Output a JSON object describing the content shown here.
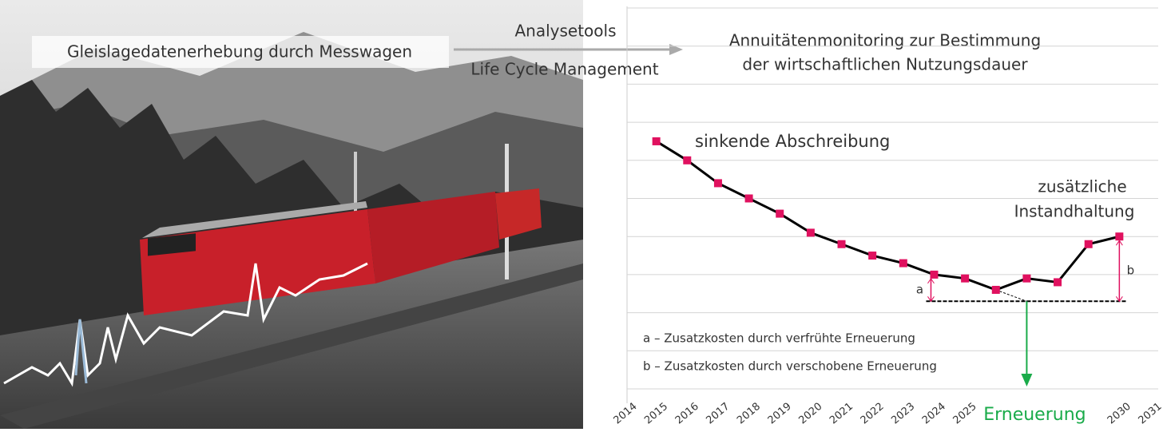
{
  "header": {
    "left_label": "Gleislagedatenerhebung durch Messwagen",
    "arrow_top": "Analysetools",
    "arrow_bottom": "Life Cycle Management"
  },
  "chart_data": {
    "type": "line",
    "title": [
      "Annuitätenmonitoring zur Bestimmung",
      "der wirtschaftlichen Nutzungsdauer"
    ],
    "x": [
      2015,
      2016,
      2017,
      2018,
      2019,
      2020,
      2021,
      2022,
      2023,
      2024,
      2025,
      2026,
      2027,
      2028,
      2029,
      2030
    ],
    "values": [
      6.5,
      6.0,
      5.4,
      5.0,
      4.6,
      4.1,
      3.8,
      3.5,
      3.3,
      3.0,
      2.9,
      2.6,
      2.9,
      2.8,
      3.8,
      4.0
    ],
    "color": "#000000",
    "marker_color": "#e0115f",
    "xlim": [
      2014,
      2031
    ],
    "xticks": [
      2014,
      2015,
      2016,
      2017,
      2018,
      2019,
      2020,
      2021,
      2022,
      2023,
      2024,
      2025,
      2030,
      2031
    ],
    "ylim": [
      0,
      10
    ],
    "gridlines": [
      0,
      1,
      2,
      3,
      4,
      5,
      6,
      7,
      8,
      9,
      10
    ],
    "baseline": 2.3,
    "baseline_range": [
      2024,
      2030
    ],
    "annotations": {
      "falling": "sinkende Abschreibung",
      "extra": [
        "zusätzliche",
        "Instandhaltung"
      ],
      "a": "a",
      "b": "b",
      "note_a": "a – Zusatzkosten durch verfrühte Erneuerung",
      "note_b": "b – Zusatzkosten durch verschobene Erneuerung"
    },
    "renewal": {
      "label": "Erneuerung",
      "x": 2027,
      "color": "#1aab4a"
    }
  }
}
